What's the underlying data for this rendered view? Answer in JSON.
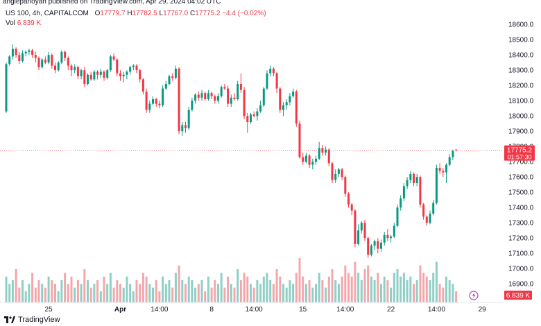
{
  "attribution": "anglepanoyan published on TradingView.com, Apr 29, 2024 04:02 UTC",
  "legend": {
    "symbol": "US 100, 4h, CAPITALCOM",
    "open_label": "O",
    "open": "17779.7",
    "high_label": "H",
    "high": "17782.5",
    "low_label": "L",
    "low": "17767.0",
    "close_label": "C",
    "close": "17775.2",
    "change": "−4.4 (−0.02%)",
    "vol_label": "Vol",
    "vol": "6.839 K"
  },
  "footer": {
    "brand": "TradingView"
  },
  "colors": {
    "up": "#089981",
    "down": "#f23645",
    "vol_up": "#8ecfc6",
    "vol_down": "#f4a7ab",
    "axis_text": "#131722"
  },
  "chart_data": {
    "type": "candlestick",
    "title": "US 100, 4h, CAPITALCOM",
    "ylim": [
      16860,
      18660
    ],
    "y_ticks": [
      16900,
      17000,
      17100,
      17200,
      17300,
      17400,
      17500,
      17600,
      17700,
      17800,
      17900,
      18000,
      18100,
      18200,
      18300,
      18400,
      18500,
      18600
    ],
    "x_ticks": [
      {
        "label": "25",
        "index": 13
      },
      {
        "label": "Apr",
        "index": 35
      },
      {
        "label": "14:00",
        "index": 47
      },
      {
        "label": "8",
        "index": 63
      },
      {
        "label": "14:00",
        "index": 76
      },
      {
        "label": "15",
        "index": 91
      },
      {
        "label": "14:00",
        "index": 104
      },
      {
        "label": "22",
        "index": 118
      },
      {
        "label": "14:00",
        "index": 132
      },
      {
        "label": "29",
        "index": 146
      }
    ],
    "last_price": "17775.2",
    "countdown": "01:57:30",
    "last_volume": "6.839 K",
    "volume_max": 15,
    "candles": [
      [
        18030,
        18350,
        18020,
        18340,
        7
      ],
      [
        18340,
        18400,
        18330,
        18390,
        5
      ],
      [
        18390,
        18470,
        18370,
        18440,
        6
      ],
      [
        18440,
        18450,
        18380,
        18400,
        9
      ],
      [
        18400,
        18420,
        18340,
        18360,
        4
      ],
      [
        18360,
        18430,
        18350,
        18410,
        6
      ],
      [
        18410,
        18430,
        18390,
        18420,
        3
      ],
      [
        18420,
        18440,
        18400,
        18430,
        5
      ],
      [
        18430,
        18440,
        18380,
        18400,
        8
      ],
      [
        18400,
        18420,
        18350,
        18380,
        4
      ],
      [
        18380,
        18390,
        18300,
        18320,
        6
      ],
      [
        18320,
        18380,
        18310,
        18370,
        5
      ],
      [
        18370,
        18390,
        18340,
        18350,
        4
      ],
      [
        18350,
        18420,
        18340,
        18400,
        7
      ],
      [
        18400,
        18410,
        18310,
        18330,
        6
      ],
      [
        18330,
        18350,
        18280,
        18300,
        5
      ],
      [
        18300,
        18360,
        18290,
        18350,
        3
      ],
      [
        18350,
        18430,
        18340,
        18420,
        6
      ],
      [
        18420,
        18430,
        18360,
        18380,
        8
      ],
      [
        18380,
        18390,
        18300,
        18330,
        5
      ],
      [
        18330,
        18340,
        18260,
        18300,
        7
      ],
      [
        18300,
        18340,
        18280,
        18320,
        4
      ],
      [
        18320,
        18330,
        18240,
        18260,
        6
      ],
      [
        18260,
        18310,
        18240,
        18300,
        5
      ],
      [
        18300,
        18320,
        18190,
        18210,
        9
      ],
      [
        18210,
        18280,
        18200,
        18270,
        6
      ],
      [
        18270,
        18290,
        18230,
        18240,
        4
      ],
      [
        18240,
        18300,
        18230,
        18290,
        5
      ],
      [
        18290,
        18300,
        18240,
        18270,
        6
      ],
      [
        18270,
        18310,
        18250,
        18290,
        3
      ],
      [
        18290,
        18300,
        18230,
        18250,
        7
      ],
      [
        18250,
        18310,
        18240,
        18300,
        5
      ],
      [
        18300,
        18400,
        18290,
        18390,
        8
      ],
      [
        18390,
        18410,
        18360,
        18370,
        4
      ],
      [
        18370,
        18380,
        18260,
        18280,
        6
      ],
      [
        18280,
        18300,
        18230,
        18260,
        5
      ],
      [
        18260,
        18290,
        18220,
        18270,
        4
      ],
      [
        18270,
        18300,
        18240,
        18290,
        7
      ],
      [
        18290,
        18330,
        18270,
        18320,
        5
      ],
      [
        18320,
        18340,
        18300,
        18330,
        3
      ],
      [
        18330,
        18340,
        18280,
        18300,
        6
      ],
      [
        18300,
        18310,
        18220,
        18240,
        5
      ],
      [
        18240,
        18250,
        18140,
        18160,
        8
      ],
      [
        18160,
        18180,
        18020,
        18040,
        7
      ],
      [
        18040,
        18100,
        18020,
        18080,
        5
      ],
      [
        18080,
        18130,
        18070,
        18110,
        4
      ],
      [
        18110,
        18120,
        18060,
        18080,
        6
      ],
      [
        18080,
        18100,
        18050,
        18070,
        3
      ],
      [
        18070,
        18200,
        18060,
        18180,
        7
      ],
      [
        18180,
        18230,
        18170,
        18210,
        5
      ],
      [
        18210,
        18270,
        18200,
        18260,
        6
      ],
      [
        18260,
        18280,
        18230,
        18250,
        4
      ],
      [
        18250,
        18330,
        18240,
        18310,
        8
      ],
      [
        18310,
        18320,
        17880,
        17900,
        10
      ],
      [
        17900,
        17960,
        17870,
        17940,
        6
      ],
      [
        17940,
        17960,
        17890,
        17920,
        5
      ],
      [
        17920,
        18060,
        17910,
        18040,
        7
      ],
      [
        18040,
        18120,
        18030,
        18100,
        6
      ],
      [
        18100,
        18150,
        18080,
        18140,
        4
      ],
      [
        18140,
        18160,
        18100,
        18120,
        5
      ],
      [
        18120,
        18170,
        18100,
        18150,
        6
      ],
      [
        18150,
        18160,
        18100,
        18110,
        3
      ],
      [
        18110,
        18170,
        18100,
        18150,
        7
      ],
      [
        18150,
        18160,
        18110,
        18130,
        4
      ],
      [
        18130,
        18140,
        18080,
        18100,
        6
      ],
      [
        18100,
        18150,
        18080,
        18130,
        5
      ],
      [
        18130,
        18200,
        18120,
        18190,
        8
      ],
      [
        18190,
        18210,
        18170,
        18180,
        4
      ],
      [
        18180,
        18200,
        18060,
        18080,
        7
      ],
      [
        18080,
        18140,
        18060,
        18120,
        5
      ],
      [
        18120,
        18150,
        18100,
        18110,
        4
      ],
      [
        18110,
        18230,
        18100,
        18210,
        9
      ],
      [
        18210,
        18280,
        18150,
        18170,
        6
      ],
      [
        18170,
        18190,
        17980,
        18000,
        8
      ],
      [
        18000,
        18020,
        17890,
        17960,
        7
      ],
      [
        17960,
        18020,
        17950,
        18010,
        5
      ],
      [
        18010,
        18030,
        17990,
        18000,
        4
      ],
      [
        18000,
        18050,
        17970,
        18030,
        6
      ],
      [
        18030,
        18100,
        18020,
        18070,
        5
      ],
      [
        18070,
        18190,
        18060,
        18180,
        7
      ],
      [
        18180,
        18300,
        18170,
        18280,
        8
      ],
      [
        18280,
        18330,
        18260,
        18310,
        6
      ],
      [
        18310,
        18320,
        18260,
        18280,
        5
      ],
      [
        18280,
        18290,
        18150,
        18180,
        9
      ],
      [
        18180,
        18190,
        18020,
        18040,
        7
      ],
      [
        18040,
        18090,
        18000,
        18070,
        5
      ],
      [
        18070,
        18110,
        18040,
        18090,
        4
      ],
      [
        18090,
        18150,
        18070,
        18130,
        6
      ],
      [
        18130,
        18180,
        18120,
        18160,
        5
      ],
      [
        18160,
        18170,
        17930,
        17950,
        8
      ],
      [
        17950,
        17970,
        17720,
        17730,
        12
      ],
      [
        17730,
        17760,
        17680,
        17700,
        7
      ],
      [
        17700,
        17760,
        17690,
        17740,
        5
      ],
      [
        17740,
        17750,
        17660,
        17680,
        6
      ],
      [
        17680,
        17720,
        17650,
        17700,
        4
      ],
      [
        17700,
        17740,
        17680,
        17720,
        5
      ],
      [
        17720,
        17830,
        17710,
        17790,
        8
      ],
      [
        17790,
        17810,
        17740,
        17760,
        6
      ],
      [
        17760,
        17800,
        17740,
        17780,
        4
      ],
      [
        17780,
        17790,
        17670,
        17690,
        7
      ],
      [
        17690,
        17700,
        17560,
        17580,
        9
      ],
      [
        17580,
        17650,
        17560,
        17620,
        6
      ],
      [
        17620,
        17660,
        17600,
        17650,
        5
      ],
      [
        17650,
        17660,
        17580,
        17600,
        7
      ],
      [
        17600,
        17610,
        17470,
        17490,
        10
      ],
      [
        17490,
        17500,
        17400,
        17420,
        8
      ],
      [
        17420,
        17430,
        17350,
        17380,
        7
      ],
      [
        17380,
        17390,
        17140,
        17160,
        11
      ],
      [
        17160,
        17290,
        17150,
        17250,
        8
      ],
      [
        17250,
        17310,
        17230,
        17300,
        6
      ],
      [
        17300,
        17320,
        17180,
        17200,
        9
      ],
      [
        17200,
        17210,
        17070,
        17090,
        10
      ],
      [
        17090,
        17160,
        17080,
        17150,
        7
      ],
      [
        17150,
        17190,
        17120,
        17180,
        6
      ],
      [
        17180,
        17200,
        17100,
        17130,
        8
      ],
      [
        17130,
        17190,
        17110,
        17170,
        5
      ],
      [
        17170,
        17240,
        17150,
        17220,
        7
      ],
      [
        17220,
        17260,
        17180,
        17200,
        6
      ],
      [
        17200,
        17220,
        17170,
        17210,
        4
      ],
      [
        17210,
        17300,
        17200,
        17280,
        8
      ],
      [
        17280,
        17420,
        17270,
        17400,
        9
      ],
      [
        17400,
        17480,
        17380,
        17460,
        7
      ],
      [
        17460,
        17560,
        17440,
        17540,
        8
      ],
      [
        17540,
        17600,
        17520,
        17580,
        6
      ],
      [
        17580,
        17640,
        17560,
        17620,
        7
      ],
      [
        17620,
        17630,
        17540,
        17560,
        5
      ],
      [
        17560,
        17620,
        17540,
        17600,
        6
      ],
      [
        17600,
        17610,
        17400,
        17420,
        10
      ],
      [
        17420,
        17430,
        17320,
        17340,
        8
      ],
      [
        17340,
        17350,
        17280,
        17300,
        7
      ],
      [
        17300,
        17380,
        17290,
        17360,
        6
      ],
      [
        17360,
        17450,
        17350,
        17430,
        8
      ],
      [
        17430,
        17680,
        17420,
        17660,
        11
      ],
      [
        17660,
        17690,
        17620,
        17640,
        5
      ],
      [
        17640,
        17660,
        17600,
        17630,
        4
      ],
      [
        17630,
        17690,
        17560,
        17680,
        7
      ],
      [
        17680,
        17750,
        17670,
        17730,
        6
      ],
      [
        17730,
        17780,
        17710,
        17770,
        5
      ],
      [
        17779.7,
        17782.5,
        17767.0,
        17775.2,
        3
      ]
    ]
  }
}
